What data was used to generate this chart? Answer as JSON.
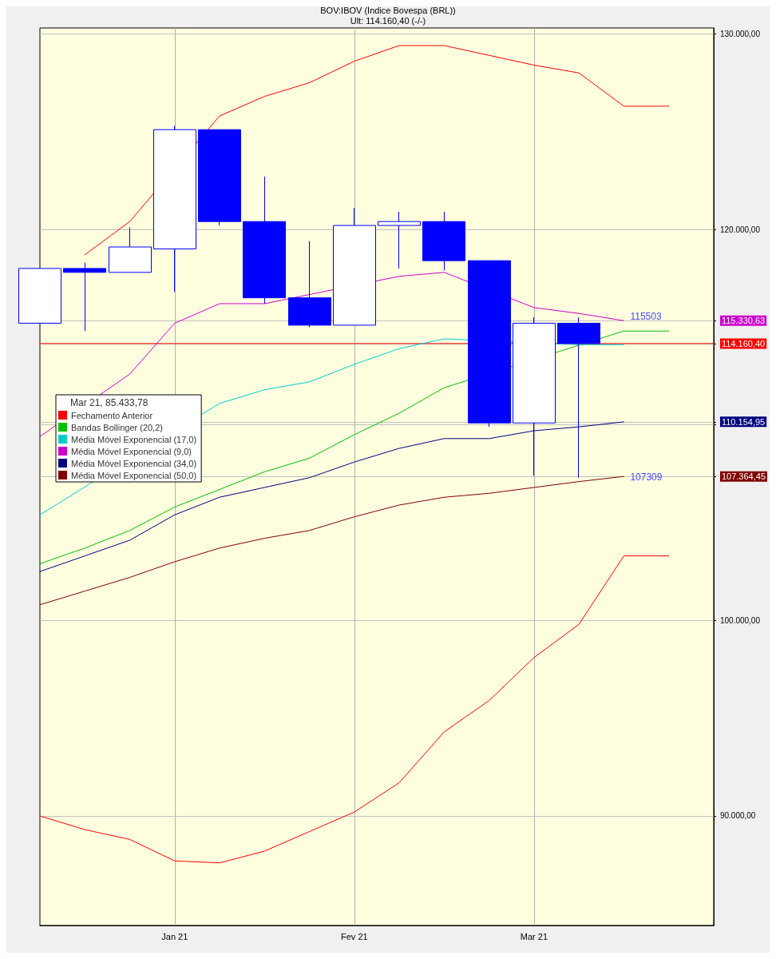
{
  "chart_data": {
    "type": "candlestick",
    "title": "BOV:IBOV (Índice Bovespa (BRL))",
    "subtitle": "Ult: 114.160,40 (-/-)",
    "legend_title": "Mar 21, 85.433,78",
    "color": "#0000ff",
    "categories": [
      null,
      null,
      null,
      "Jan 21",
      null,
      null,
      null,
      "Fev 21",
      null,
      null,
      null,
      "Mar 21",
      null,
      null,
      null,
      null
    ],
    "ohlc": [
      [
        115200,
        118000,
        115200,
        118000
      ],
      [
        118000,
        118300,
        114800,
        117800
      ],
      [
        117800,
        120100,
        117800,
        119100
      ],
      [
        119000,
        125300,
        116800,
        125100
      ],
      [
        125100,
        125100,
        120200,
        120400
      ],
      [
        120400,
        122700,
        116200,
        116500
      ],
      [
        116500,
        119400,
        115000,
        115100
      ],
      [
        115100,
        121100,
        115100,
        120200
      ],
      [
        120200,
        120900,
        118000,
        120400
      ],
      [
        120400,
        120900,
        117900,
        118400
      ],
      [
        118400,
        118400,
        109900,
        110100
      ],
      [
        110100,
        115500,
        107400,
        115200
      ],
      [
        115200,
        115500,
        107300,
        114160
      ],
      null,
      null,
      null
    ],
    "series": [
      {
        "type": "line",
        "name": "Fechamento Anterior",
        "color": "#ff0000",
        "values": [
          114160.4,
          114160.4,
          114160.4,
          114160.4,
          114160.4,
          114160.4,
          114160.4,
          114160.4,
          114160.4,
          114160.4,
          null,
          null,
          null,
          114160.4,
          114160.4,
          114160.4
        ]
      },
      {
        "type": "line",
        "color": "#ff0000",
        "values": [
          null,
          118700,
          120400,
          null,
          125800,
          126800,
          127500,
          128600,
          129400,
          129400,
          128900,
          128400,
          128000,
          126300,
          126300,
          null
        ]
      },
      {
        "type": "line",
        "color": "#ff0000",
        "values": [
          90000,
          89300,
          88800,
          87700,
          87600,
          88200,
          89200,
          90200,
          91700,
          94300,
          95900,
          98100,
          99800,
          103300,
          103300,
          null
        ]
      },
      {
        "type": "line",
        "name": "Bandas Bollinger (20,2)",
        "color": "#00c000",
        "values": [
          102900,
          103700,
          104600,
          105800,
          106700,
          107600,
          108300,
          109500,
          110600,
          111900,
          null,
          null,
          null,
          114800,
          114800,
          null
        ]
      },
      {
        "type": "line",
        "name": "Média Móvel Exponencial (17,0)",
        "color": "#00cccc",
        "values": [
          105400,
          null,
          null,
          null,
          111100,
          111800,
          112200,
          113100,
          113900,
          114400,
          null,
          null,
          114100,
          114100,
          null,
          null
        ]
      },
      {
        "type": "line",
        "name": "Média Móvel Exponencial (9,0)",
        "color": "#cc00cc",
        "values": [
          109400,
          null,
          112600,
          115200,
          116200,
          116200,
          null,
          null,
          117600,
          117800,
          null,
          116000,
          115700,
          115330.63,
          null,
          null
        ]
      },
      {
        "type": "line",
        "name": "Média Móvel Exponencial (34,0)",
        "color": "#000080",
        "values": [
          102500,
          103300,
          104100,
          105400,
          106300,
          106800,
          107300,
          108100,
          108800,
          109300,
          109300,
          109700,
          109900,
          110154.95,
          null,
          null
        ]
      },
      {
        "type": "line",
        "name": "Média Móvel Exponencial (50,0)",
        "color": "#800000",
        "values": [
          100800,
          101500,
          102200,
          103000,
          103700,
          104200,
          104600,
          105300,
          105900,
          106300,
          106500,
          106800,
          107100,
          107364.45,
          null,
          null
        ]
      }
    ],
    "annotations": [
      "115503",
      "107309"
    ],
    "ylim": [
      84400,
      130300
    ],
    "yticks": [
      {
        "value": 90000,
        "label": "90.000,00"
      },
      {
        "value": 100000,
        "label": "100.000,00"
      },
      {
        "value": 107364.45,
        "label": "107.364,45"
      },
      {
        "value": 110000,
        "label": null
      },
      {
        "value": 110154.95,
        "label": "110.154,95"
      },
      {
        "value": 114160.4,
        "label": "114.160,40"
      },
      {
        "value": 115330.63,
        "label": "115.330,63"
      },
      {
        "value": 120000,
        "label": "120.000,00"
      },
      {
        "value": 130000,
        "label": "130.000,00"
      }
    ],
    "grid": true,
    "legend": "left",
    "marker": "none",
    "line_style": "solid"
  }
}
